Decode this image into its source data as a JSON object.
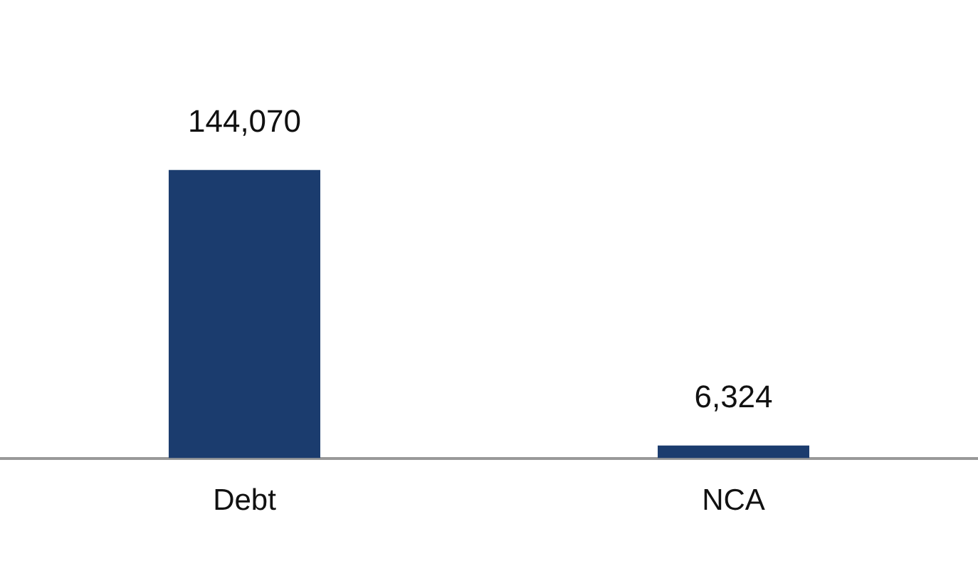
{
  "chart_data": {
    "type": "bar",
    "categories": [
      "Debt",
      "NCA"
    ],
    "values": [
      144070,
      6324
    ],
    "color": "#1b3c6e",
    "value_labels": [
      "144,070",
      "6,324"
    ]
  }
}
